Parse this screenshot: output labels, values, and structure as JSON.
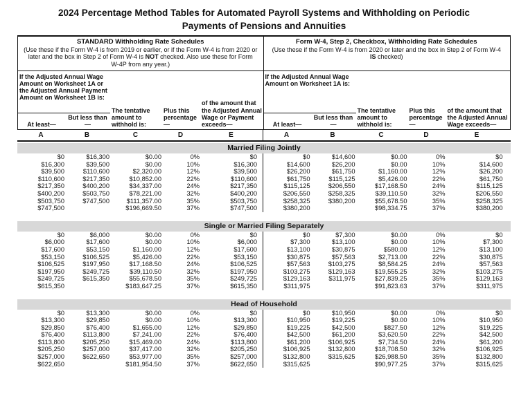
{
  "title": {
    "line1": "2024 Percentage Method Tables for Automated Payroll Systems and Withholding on Periodic",
    "line2": "Payments of Pensions and Annuities"
  },
  "schedules": [
    {
      "heading": "STANDARD Withholding Rate Schedules",
      "sub_pre": "(Use these if the Form W-4 is from 2019 or earlier, or if the Form W-4 is from 2020 or later and the box in Step 2 of Form W-4 is ",
      "sub_bold": "NOT",
      "sub_post": " checked. Also use these for Form W-4P from any year.)"
    },
    {
      "heading": "Form W-4, Step 2, Checkbox, Withholding Rate Schedules",
      "sub_pre": "(Use these if the Form W-4 is from 2020 or later and the box in Step 2 of Form W-4 ",
      "sub_bold": "IS",
      "sub_post": " checked)"
    }
  ],
  "col_headers": {
    "left_wage_note": "If the Adjusted Annual Wage Amount on Worksheet 1A or the Adjusted Annual Payment Amount on Worksheet 1B is:",
    "right_wage_note": "If the Adjusted Annual Wage Amount on Worksheet 1A is:",
    "at_least": "At least—",
    "but_less": "But less than—",
    "tentative": "The tentative amount to withhold is:",
    "plus_pct": "Plus this percentage—",
    "exceeds_left": "of the amount that the Adjusted Annual Wage or Payment exceeds—",
    "exceeds_right": "of the amount that the Adjusted Annual Wage exceeds—"
  },
  "letters": [
    "A",
    "B",
    "C",
    "D",
    "E"
  ],
  "sections": [
    {
      "name": "Married Filing Jointly",
      "left": [
        [
          "$0",
          "$16,300",
          "$0.00",
          "0%",
          "$0"
        ],
        [
          "$16,300",
          "$39,500",
          "$0.00",
          "10%",
          "$16,300"
        ],
        [
          "$39,500",
          "$110,600",
          "$2,320.00",
          "12%",
          "$39,500"
        ],
        [
          "$110,600",
          "$217,350",
          "$10,852.00",
          "22%",
          "$110,600"
        ],
        [
          "$217,350",
          "$400,200",
          "$34,337.00",
          "24%",
          "$217,350"
        ],
        [
          "$400,200",
          "$503,750",
          "$78,221.00",
          "32%",
          "$400,200"
        ],
        [
          "$503,750",
          "$747,500",
          "$111,357.00",
          "35%",
          "$503,750"
        ],
        [
          "$747,500",
          "",
          "$196,669.50",
          "37%",
          "$747,500"
        ]
      ],
      "right": [
        [
          "$0",
          "$14,600",
          "$0.00",
          "0%",
          "$0"
        ],
        [
          "$14,600",
          "$26,200",
          "$0.00",
          "10%",
          "$14,600"
        ],
        [
          "$26,200",
          "$61,750",
          "$1,160.00",
          "12%",
          "$26,200"
        ],
        [
          "$61,750",
          "$115,125",
          "$5,426.00",
          "22%",
          "$61,750"
        ],
        [
          "$115,125",
          "$206,550",
          "$17,168.50",
          "24%",
          "$115,125"
        ],
        [
          "$206,550",
          "$258,325",
          "$39,110.50",
          "32%",
          "$206,550"
        ],
        [
          "$258,325",
          "$380,200",
          "$55,678.50",
          "35%",
          "$258,325"
        ],
        [
          "$380,200",
          "",
          "$98,334.75",
          "37%",
          "$380,200"
        ]
      ]
    },
    {
      "name": "Single or Married Filing Separately",
      "left": [
        [
          "$0",
          "$6,000",
          "$0.00",
          "0%",
          "$0"
        ],
        [
          "$6,000",
          "$17,600",
          "$0.00",
          "10%",
          "$6,000"
        ],
        [
          "$17,600",
          "$53,150",
          "$1,160.00",
          "12%",
          "$17,600"
        ],
        [
          "$53,150",
          "$106,525",
          "$5,426.00",
          "22%",
          "$53,150"
        ],
        [
          "$106,525",
          "$197,950",
          "$17,168.50",
          "24%",
          "$106,525"
        ],
        [
          "$197,950",
          "$249,725",
          "$39,110.50",
          "32%",
          "$197,950"
        ],
        [
          "$249,725",
          "$615,350",
          "$55,678.50",
          "35%",
          "$249,725"
        ],
        [
          "$615,350",
          "",
          "$183,647.25",
          "37%",
          "$615,350"
        ]
      ],
      "right": [
        [
          "$0",
          "$7,300",
          "$0.00",
          "0%",
          "$0"
        ],
        [
          "$7,300",
          "$13,100",
          "$0.00",
          "10%",
          "$7,300"
        ],
        [
          "$13,100",
          "$30,875",
          "$580.00",
          "12%",
          "$13,100"
        ],
        [
          "$30,875",
          "$57,563",
          "$2,713.00",
          "22%",
          "$30,875"
        ],
        [
          "$57,563",
          "$103,275",
          "$8,584.25",
          "24%",
          "$57,563"
        ],
        [
          "$103,275",
          "$129,163",
          "$19,555.25",
          "32%",
          "$103,275"
        ],
        [
          "$129,163",
          "$311,975",
          "$27,839.25",
          "35%",
          "$129,163"
        ],
        [
          "$311,975",
          "",
          "$91,823.63",
          "37%",
          "$311,975"
        ]
      ]
    },
    {
      "name": "Head of Household",
      "left": [
        [
          "$0",
          "$13,300",
          "$0.00",
          "0%",
          "$0"
        ],
        [
          "$13,300",
          "$29,850",
          "$0.00",
          "10%",
          "$13,300"
        ],
        [
          "$29,850",
          "$76,400",
          "$1,655.00",
          "12%",
          "$29,850"
        ],
        [
          "$76,400",
          "$113,800",
          "$7,241.00",
          "22%",
          "$76,400"
        ],
        [
          "$113,800",
          "$205,250",
          "$15,469.00",
          "24%",
          "$113,800"
        ],
        [
          "$205,250",
          "$257,000",
          "$37,417.00",
          "32%",
          "$205,250"
        ],
        [
          "$257,000",
          "$622,650",
          "$53,977.00",
          "35%",
          "$257,000"
        ],
        [
          "$622,650",
          "",
          "$181,954.50",
          "37%",
          "$622,650"
        ]
      ],
      "right": [
        [
          "$0",
          "$10,950",
          "$0.00",
          "0%",
          "$0"
        ],
        [
          "$10,950",
          "$19,225",
          "$0.00",
          "10%",
          "$10,950"
        ],
        [
          "$19,225",
          "$42,500",
          "$827.50",
          "12%",
          "$19,225"
        ],
        [
          "$42,500",
          "$61,200",
          "$3,620.50",
          "22%",
          "$42,500"
        ],
        [
          "$61,200",
          "$106,925",
          "$7,734.50",
          "24%",
          "$61,200"
        ],
        [
          "$106,925",
          "$132,800",
          "$18,708.50",
          "32%",
          "$106,925"
        ],
        [
          "$132,800",
          "$315,625",
          "$26,988.50",
          "35%",
          "$132,800"
        ],
        [
          "$315,625",
          "",
          "$90,977.25",
          "37%",
          "$315,625"
        ]
      ]
    }
  ],
  "colors": {
    "band_gray": "#d8d8d8",
    "ink": "#111111"
  }
}
